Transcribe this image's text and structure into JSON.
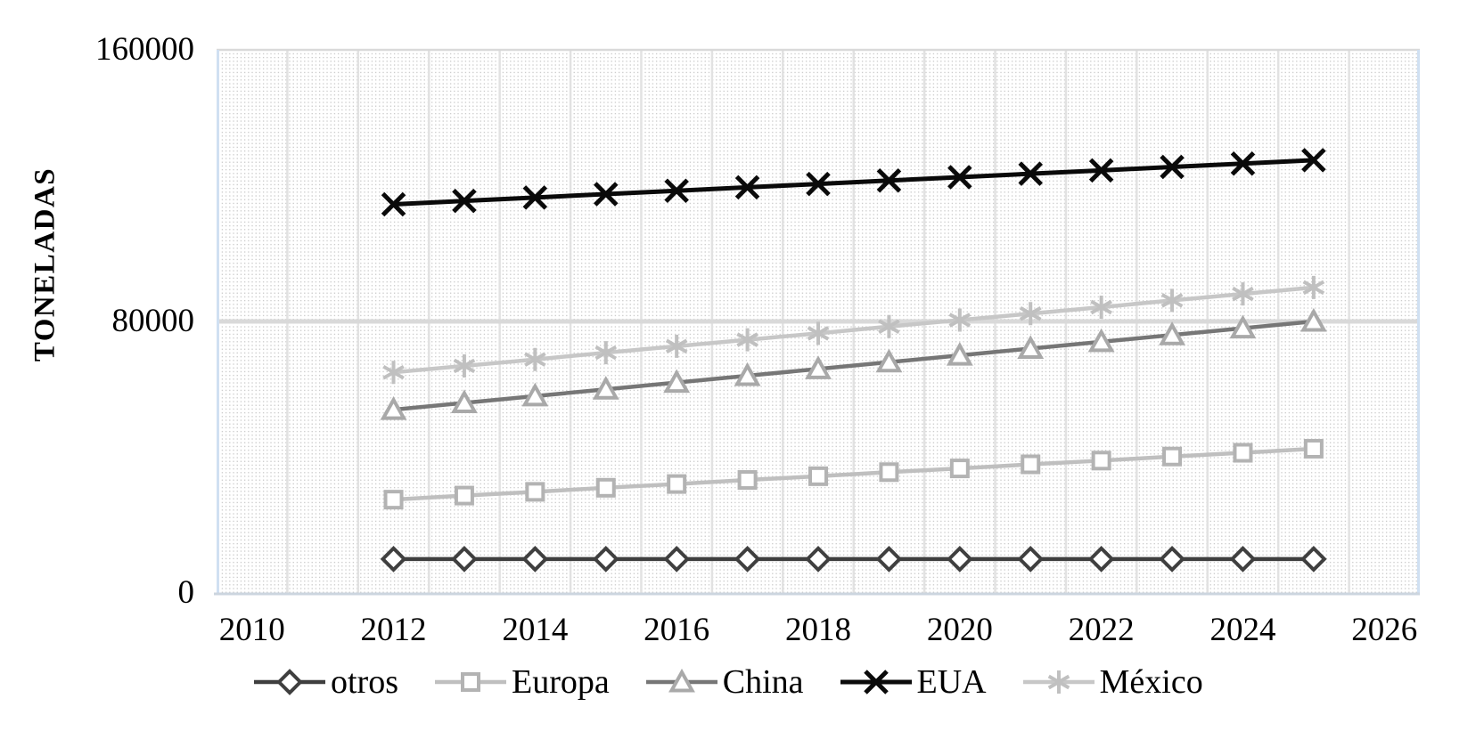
{
  "chart_data": {
    "type": "line",
    "title": "",
    "ylabel": "TONELADAS",
    "ylim": [
      0,
      160000
    ],
    "y_ticks": [
      {
        "value": 0,
        "label": "0"
      },
      {
        "value": 80000,
        "label": "80000"
      },
      {
        "value": 160000,
        "label": "160000"
      }
    ],
    "x_axis": {
      "category_start": 2010,
      "category_end": 2026,
      "ticks": [
        {
          "year": 2010,
          "label": "2010"
        },
        {
          "year": 2012,
          "label": "2012"
        },
        {
          "year": 2014,
          "label": "2014"
        },
        {
          "year": 2016,
          "label": "2016"
        },
        {
          "year": 2018,
          "label": "2018"
        },
        {
          "year": 2020,
          "label": "2020"
        },
        {
          "year": 2022,
          "label": "2022"
        },
        {
          "year": 2024,
          "label": "2024"
        },
        {
          "year": 2026,
          "label": "2026"
        }
      ]
    },
    "x": [
      2012,
      2013,
      2014,
      2015,
      2016,
      2017,
      2018,
      2019,
      2020,
      2021,
      2022,
      2023,
      2024,
      2025
    ],
    "series": [
      {
        "name": "otros",
        "marker": "diamond",
        "line_color": "#3f3f3f",
        "marker_color": "#3f3f3f",
        "line_width": 4.5,
        "values": [
          10000,
          10000,
          10000,
          10000,
          10000,
          10000,
          10000,
          10000,
          10000,
          10000,
          10000,
          10000,
          10000,
          10000
        ]
      },
      {
        "name": "Europa",
        "marker": "square",
        "line_color": "#bfbfbf",
        "marker_color": "#b3b3b3",
        "line_width": 4.5,
        "values": [
          27500,
          28700,
          29800,
          31000,
          32100,
          33300,
          34400,
          35600,
          36700,
          37900,
          39000,
          40200,
          41300,
          42500
        ]
      },
      {
        "name": "China",
        "marker": "triangle",
        "line_color": "#767676",
        "marker_color": "#a9a9a9",
        "line_width": 4.5,
        "values": [
          54000,
          56000,
          58000,
          60000,
          62000,
          64000,
          66000,
          68000,
          70000,
          72000,
          74000,
          76000,
          78000,
          80000
        ]
      },
      {
        "name": "EUA",
        "marker": "x",
        "line_color": "#0a0a0a",
        "marker_color": "#0a0a0a",
        "line_width": 5,
        "values": [
          114500,
          115500,
          116500,
          117500,
          118500,
          119500,
          120500,
          121500,
          122500,
          123500,
          124500,
          125500,
          126500,
          127500
        ]
      },
      {
        "name": "México",
        "marker": "asterisk",
        "line_color": "#c7c7c7",
        "marker_color": "#c0c0c0",
        "line_width": 4.5,
        "values": [
          65000,
          66900,
          68800,
          70800,
          72700,
          74600,
          76500,
          78500,
          80400,
          82300,
          84200,
          86200,
          88100,
          90000
        ]
      }
    ],
    "legend": {
      "position": "bottom-center",
      "entries": [
        "otros",
        "Europa",
        "China",
        "EUA",
        "México"
      ]
    },
    "grid": {
      "vertical_every_year": true,
      "horizontal_values": [
        80000,
        160000
      ],
      "background_pattern": "dotted"
    },
    "style_colors": {
      "gridline_vertical": "#e2e2e2",
      "gridline_top": "#d9d9d9",
      "gridline_major": "#d9d9d9",
      "axis_bottom_line": "#ccd5df",
      "plot_side_border": "#d0e0f2",
      "dot_pattern": "#c4c4c4",
      "text": "#000000"
    }
  }
}
